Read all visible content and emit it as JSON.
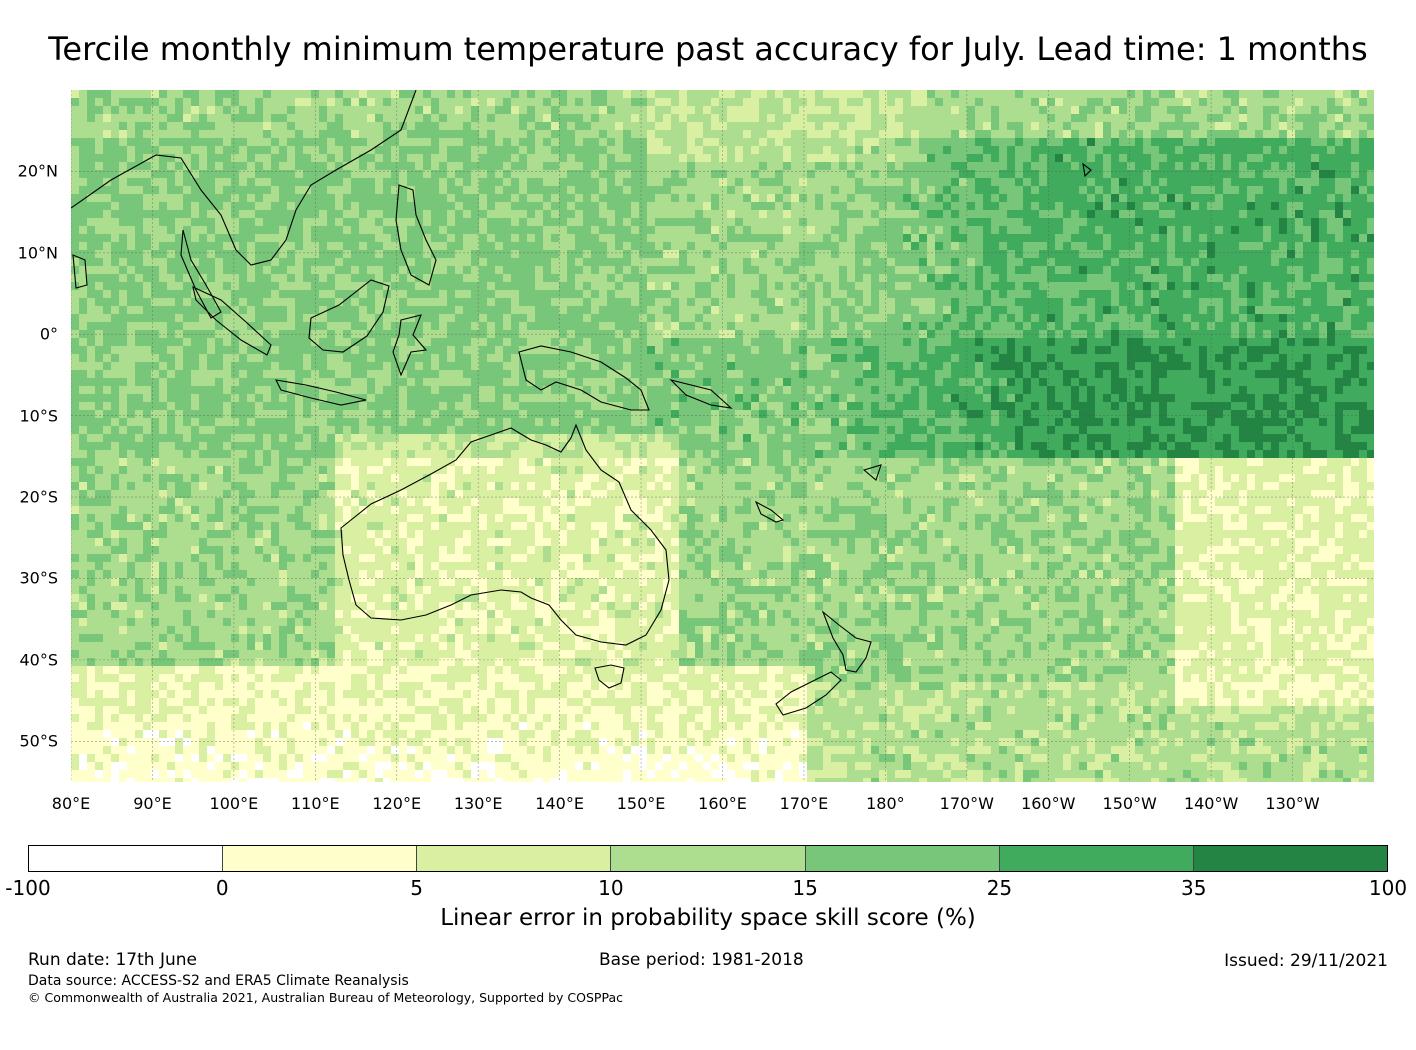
{
  "title": "Tercile monthly minimum temperature past accuracy for July. Lead time: 1 months",
  "map": {
    "region": "Pacific / Australia",
    "lat_labels": [
      "20°N",
      "10°N",
      "0°",
      "10°S",
      "20°S",
      "30°S",
      "40°S",
      "50°S"
    ],
    "lon_labels": [
      "80°E",
      "90°E",
      "100°E",
      "110°E",
      "120°E",
      "130°E",
      "140°E",
      "150°E",
      "160°E",
      "170°E",
      "180°",
      "170°W",
      "160°W",
      "150°W",
      "140°W",
      "130°W"
    ],
    "lat_values": [
      20,
      10,
      0,
      -10,
      -20,
      -30,
      -40,
      -50
    ],
    "lon_values": [
      80,
      90,
      100,
      110,
      120,
      130,
      140,
      150,
      160,
      170,
      180,
      190,
      200,
      210,
      220,
      230
    ],
    "extent": {
      "lon_min": 80,
      "lon_max": 240,
      "lat_min": -55,
      "lat_max": 30
    },
    "coastline_color": "#000000"
  },
  "colorbar": {
    "label": "Linear error in probability space skill score (%)",
    "ticks": [
      "-100",
      "0",
      "5",
      "10",
      "15",
      "25",
      "35",
      "100"
    ],
    "colors": [
      "#ffffff",
      "#ffffcc",
      "#d9f0a3",
      "#addd8e",
      "#78c679",
      "#41ab5d",
      "#238443"
    ]
  },
  "footer": {
    "run_date": "Run date: 17th June",
    "base_period": "Base period: 1981-2018",
    "issued": "Issued: 29/11/2021",
    "data_source": "Data source: ACCESS-S2 and ERA5 Climate Reanalysis",
    "copyright": "© Commonwealth of Australia 2021, Australian Bureau of Meteorology, Supported by COSPPac"
  }
}
